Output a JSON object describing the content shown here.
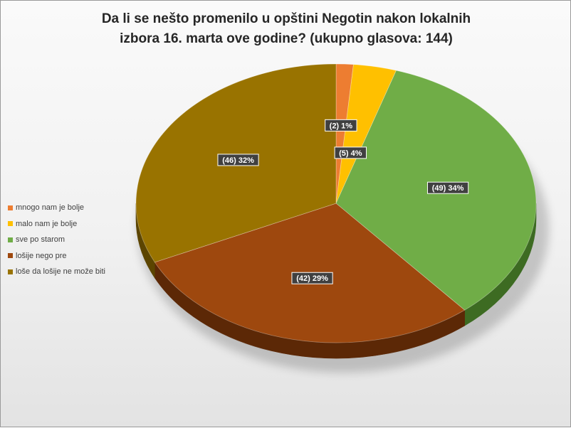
{
  "chart_data": {
    "type": "pie",
    "title": "Da li se nešto promenilo u opštini Negotin nakon lokalnih\nizbora 16. marta ove godine? (ukupno  glasova: 144)",
    "categories": [
      "mnogo nam je bolje",
      "malo nam je bolje",
      "sve po starom",
      "lošije nego pre",
      "loše da lošije ne može biti"
    ],
    "values": [
      2,
      5,
      49,
      42,
      46
    ],
    "data_labels": [
      "(2) 1%",
      "(5) 4%",
      "(49) 34%",
      "(42) 29%",
      "(46) 32%"
    ],
    "colors": [
      "#ED7D31",
      "#FFC000",
      "#70AD47",
      "#9E480E",
      "#997300"
    ],
    "side_colors": [
      "#9e4d17",
      "#a67c00",
      "#3d6b22",
      "#5c2806",
      "#5c4500"
    ],
    "legend_position": "left",
    "style": "3d"
  }
}
